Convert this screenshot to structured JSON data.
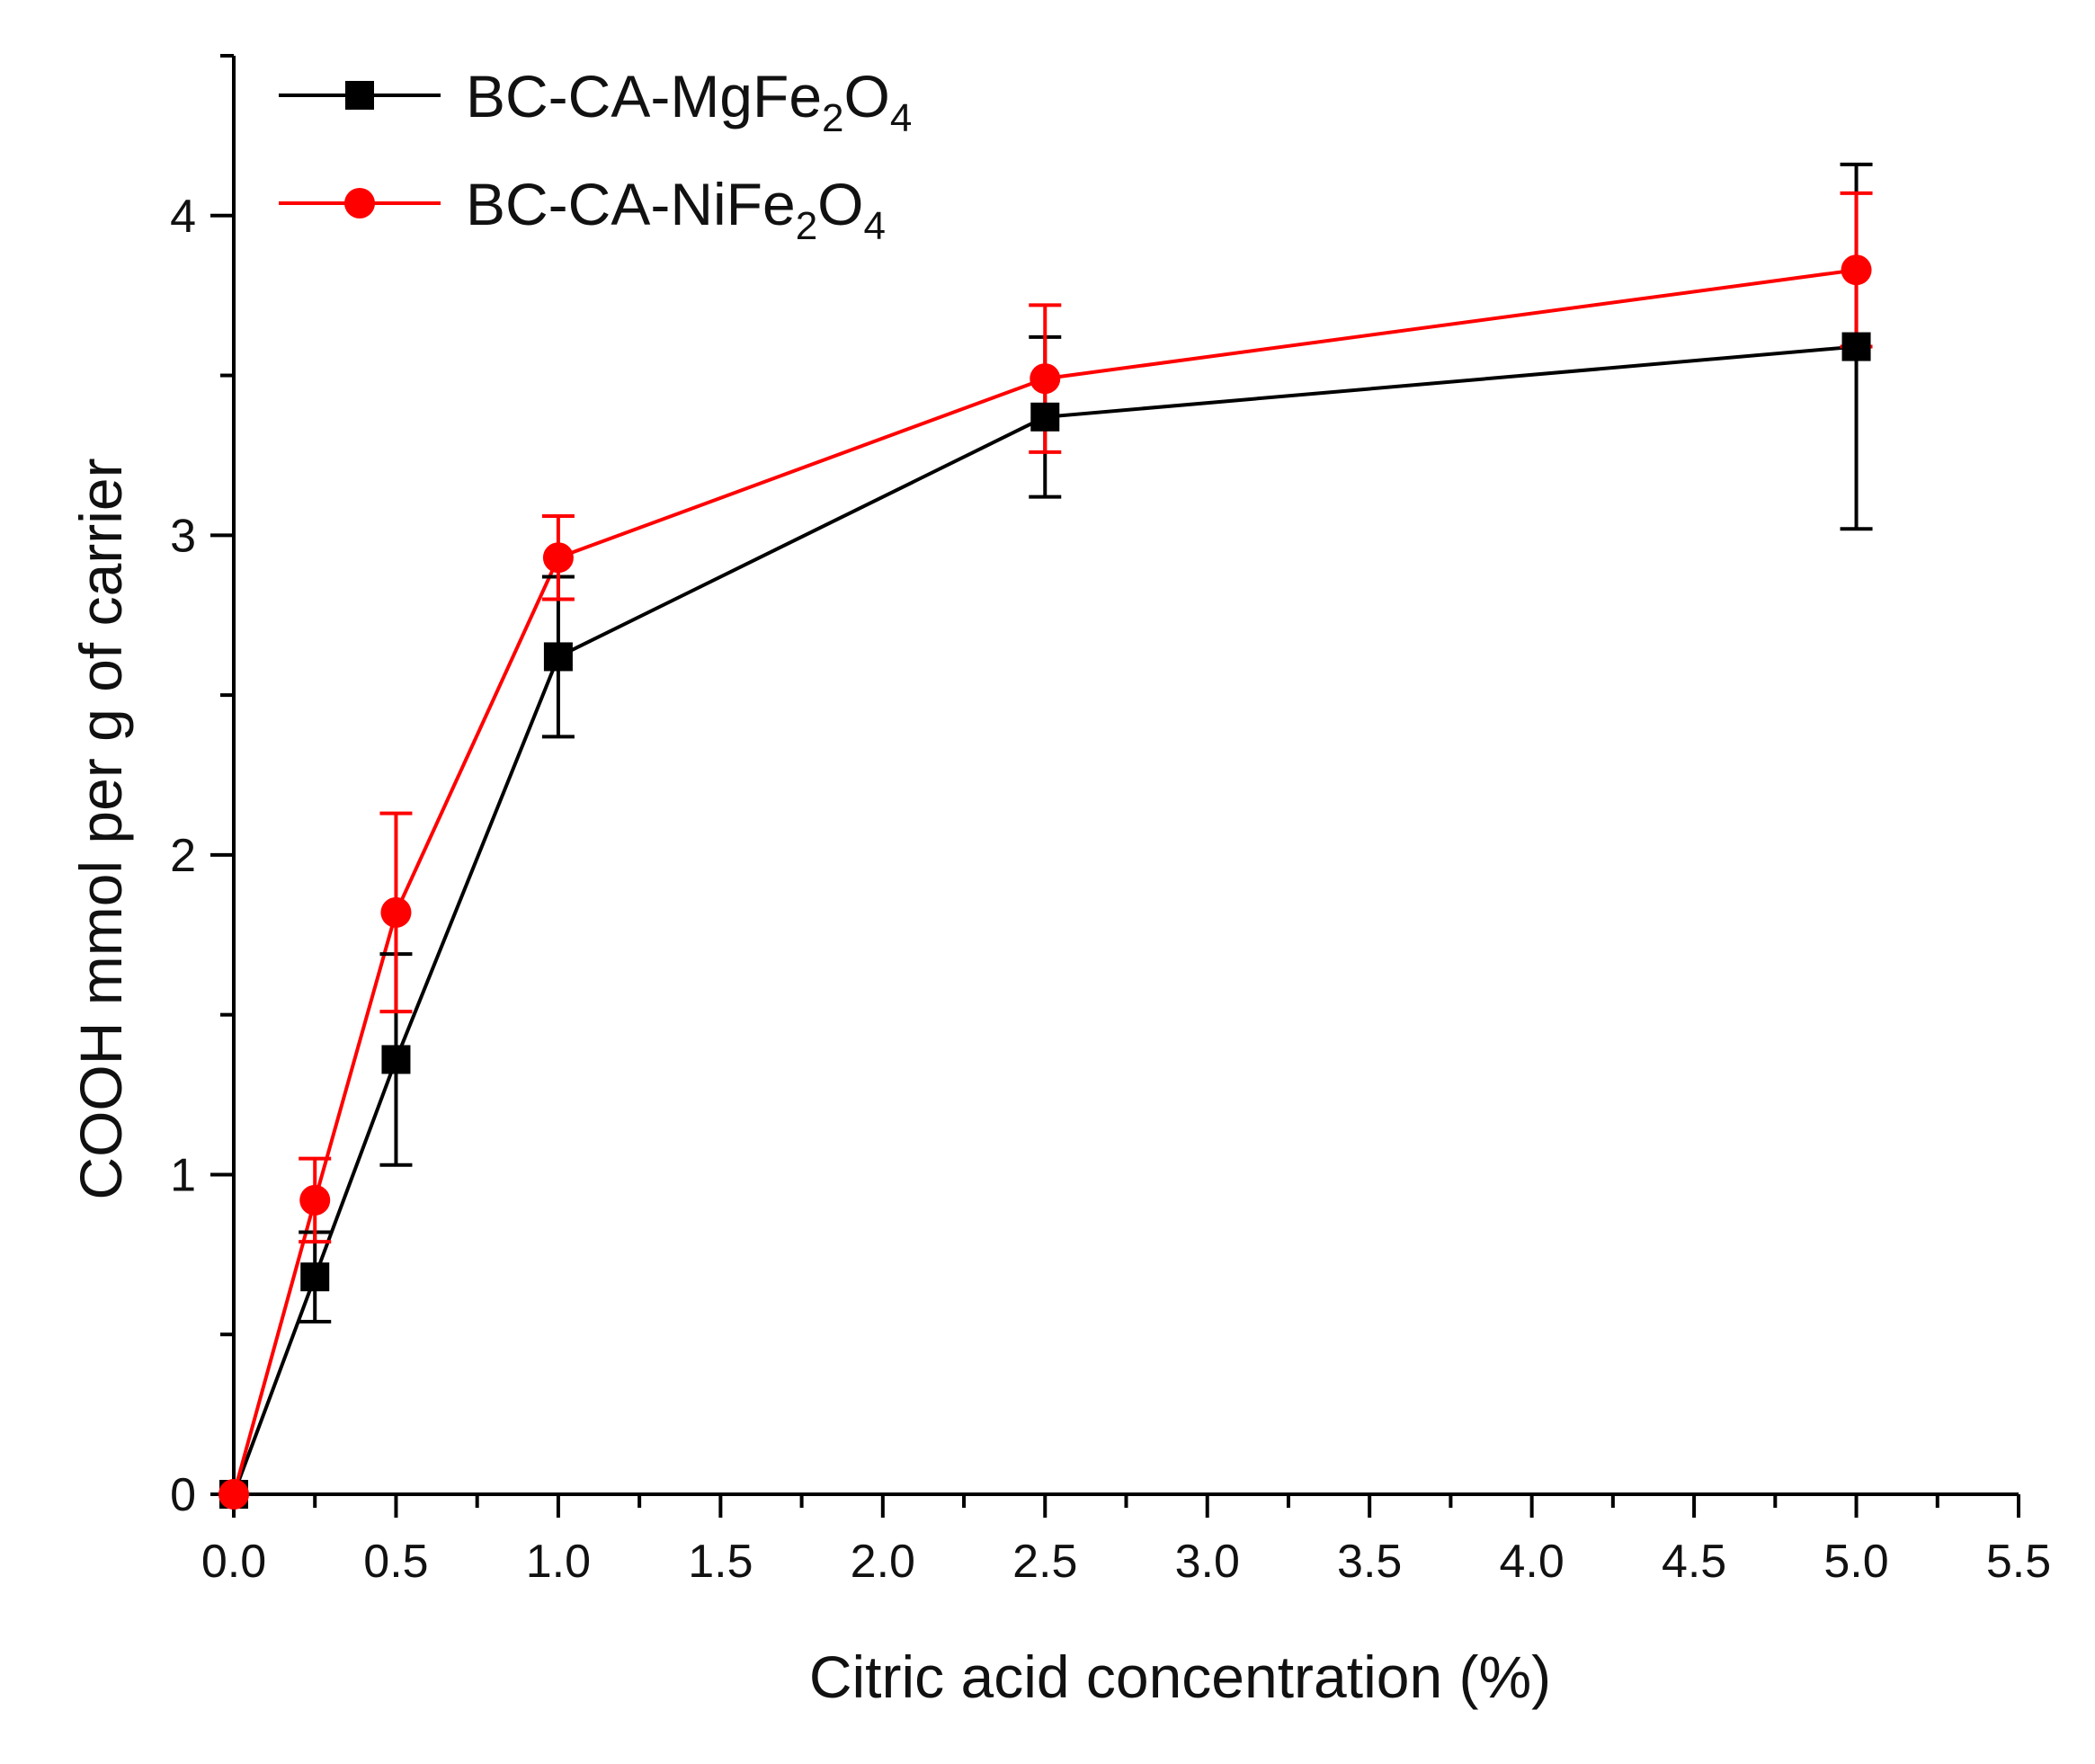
{
  "chart_data": {
    "type": "line",
    "title": "",
    "xlabel": "Citric acid concentration (%)",
    "ylabel": "COOH mmol per g of carrier",
    "xlim": [
      0,
      5.5
    ],
    "ylim": [
      0,
      4.5
    ],
    "x_ticks": [
      "0.0",
      "0.5",
      "1.0",
      "1.5",
      "2.0",
      "2.5",
      "3.0",
      "3.5",
      "4.0",
      "4.5",
      "5.0",
      "5.5"
    ],
    "y_ticks": [
      "0",
      "1",
      "2",
      "3",
      "4"
    ],
    "legend_position": "top-left",
    "series": [
      {
        "name": "BC-CA-MgFe2O4",
        "legend": {
          "main": "BC-CA-MgFe",
          "sub1": "2",
          "mid": "O",
          "sub2": "4"
        },
        "color": "#000000",
        "marker": "square",
        "x": [
          0,
          0.25,
          0.5,
          1.0,
          2.5,
          5.0
        ],
        "y": [
          0.0,
          0.68,
          1.36,
          2.62,
          3.37,
          3.59
        ],
        "error": [
          0.0,
          0.14,
          0.33,
          0.25,
          0.25,
          0.57
        ]
      },
      {
        "name": "BC-CA-NiFe2O4",
        "legend": {
          "main": "BC-CA-NiFe",
          "sub1": "2",
          "mid": "O",
          "sub2": "4"
        },
        "color": "#ff0000",
        "marker": "circle",
        "x": [
          0,
          0.25,
          0.5,
          1.0,
          2.5,
          5.0
        ],
        "y": [
          0.0,
          0.92,
          1.82,
          2.93,
          3.49,
          3.83
        ],
        "error": [
          0.0,
          0.13,
          0.31,
          0.13,
          0.23,
          0.24
        ]
      }
    ]
  }
}
